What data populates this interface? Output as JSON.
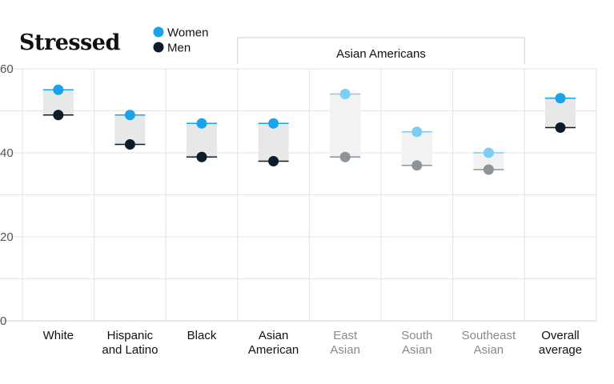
{
  "chart_data": {
    "type": "scatter",
    "title": "Stressed",
    "legend": [
      {
        "name": "Women",
        "color": "#1aa3e8"
      },
      {
        "name": "Men",
        "color": "#0d1b2a"
      }
    ],
    "group_label": "Asian Americans",
    "ylim": [
      0,
      60
    ],
    "yticks": [
      0,
      20,
      40,
      60
    ],
    "categories": [
      {
        "lines": [
          "White"
        ],
        "women": 55,
        "men": 49,
        "faded": false
      },
      {
        "lines": [
          "Hispanic",
          "and Latino"
        ],
        "women": 49,
        "men": 42,
        "faded": false
      },
      {
        "lines": [
          "Black"
        ],
        "women": 47,
        "men": 39,
        "faded": false
      },
      {
        "lines": [
          "Asian",
          "American"
        ],
        "women": 47,
        "men": 38,
        "faded": false
      },
      {
        "lines": [
          "East",
          "Asian"
        ],
        "women": 54,
        "men": 39,
        "faded": true
      },
      {
        "lines": [
          "South",
          "Asian"
        ],
        "women": 45,
        "men": 37,
        "faded": true
      },
      {
        "lines": [
          "Southeast",
          "Asian"
        ],
        "women": 40,
        "men": 36,
        "faded": true
      },
      {
        "lines": [
          "Overall",
          "average"
        ],
        "women": 53,
        "men": 46,
        "faded": false
      }
    ],
    "colors": {
      "women": "#1aa3e8",
      "women_faded": "#7fcdf2",
      "men": "#0d1b2a",
      "men_faded": "#8c949a",
      "range": "#e8e8e8",
      "range_faded": "#f2f2f2",
      "grid": "#e3e3e3"
    }
  }
}
